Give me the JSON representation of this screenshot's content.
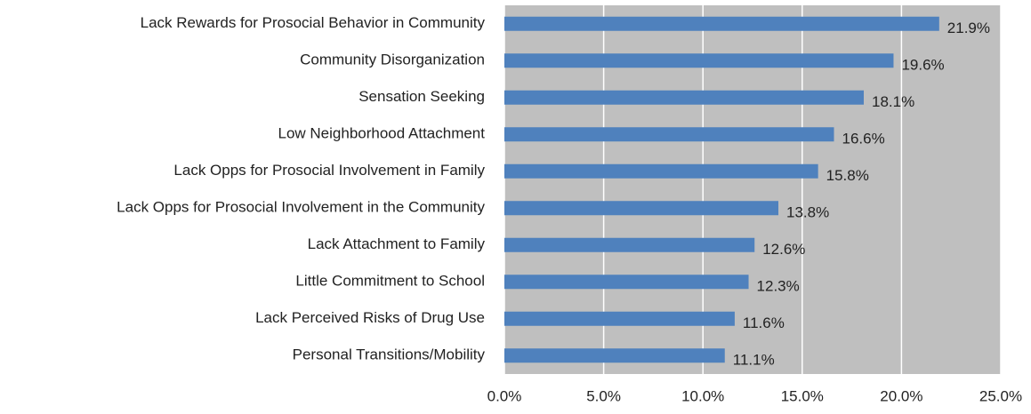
{
  "chart_data": {
    "type": "barh",
    "categories": [
      "Lack Rewards for Prosocial Behavior in Community",
      "Community Disorganization",
      "Sensation Seeking",
      "Low Neighborhood Attachment",
      "Lack Opps for Prosocial Involvement in Family",
      "Lack Opps for Prosocial Involvement in the Community",
      "Lack Attachment to Family",
      "Little Commitment to School",
      "Lack Perceived Risks of Drug Use",
      "Personal Transitions/Mobility"
    ],
    "values": [
      21.9,
      19.6,
      18.1,
      16.6,
      15.8,
      13.8,
      12.6,
      12.3,
      11.6,
      11.1
    ],
    "value_labels": [
      "21.9%",
      "19.6%",
      "18.1%",
      "16.6%",
      "15.8%",
      "13.8%",
      "12.6%",
      "12.3%",
      "11.6%",
      "11.1%"
    ],
    "color": "#4f81bd",
    "xlim": [
      0,
      25
    ],
    "xticks": [
      {
        "value": 0,
        "label": "0.0%"
      },
      {
        "value": 5,
        "label": "5.0%"
      },
      {
        "value": 10,
        "label": "10.0%"
      },
      {
        "value": 15,
        "label": "15.0%"
      },
      {
        "value": 20,
        "label": "20.0%"
      },
      {
        "value": 25,
        "label": "25.0%"
      }
    ],
    "grid": true
  }
}
